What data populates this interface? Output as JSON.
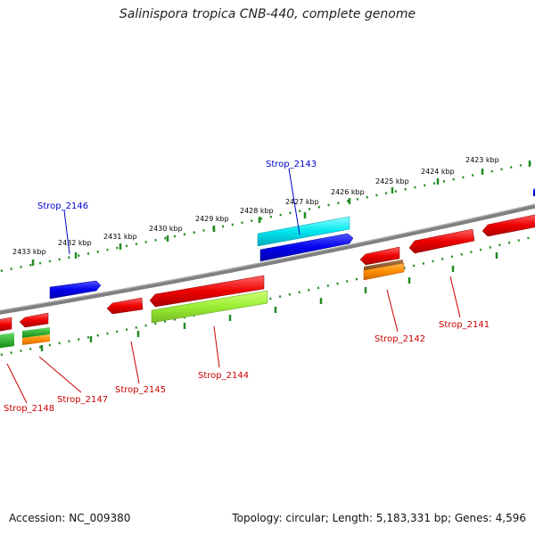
{
  "title": "Salinispora tropica CNB-440, complete genome",
  "footer": {
    "accession": "Accession: NC_009380",
    "summary": "Topology: circular; Length: 5,183,331 bp; Genes: 4,596"
  },
  "tick_labels": [
    "2433 kbp",
    "2432 kbp",
    "2431 kbp",
    "2430 kbp",
    "2429 kbp",
    "2428 kbp",
    "2427 kbp",
    "2426 kbp",
    "2425 kbp",
    "2424 kbp",
    "2423 kbp"
  ],
  "genes": [
    {
      "id": "Strop_2143",
      "strand": "forward",
      "color": "#0000cc"
    },
    {
      "id": "Strop_2146",
      "strand": "forward",
      "color": "#0000cc"
    },
    {
      "id": "Strop_2141",
      "strand": "reverse",
      "color": "#cc0000"
    },
    {
      "id": "Strop_2142",
      "strand": "reverse",
      "color": "#cc0000"
    },
    {
      "id": "Strop_2144",
      "strand": "reverse",
      "color": "#cc0000"
    },
    {
      "id": "Strop_2145",
      "strand": "reverse",
      "color": "#cc0000"
    },
    {
      "id": "Strop_2147",
      "strand": "reverse",
      "color": "#cc0000"
    },
    {
      "id": "Strop_2148",
      "strand": "reverse",
      "color": "#cc0000"
    }
  ],
  "colors": {
    "backbone": "#808080",
    "forward_gene": "#0000ee",
    "reverse_gene": "#ee0000",
    "feature_cyan": "#00e5ee",
    "feature_green": "#99ee33",
    "feature_orange": "#ff8c00",
    "feature_brown": "#8b5a2b",
    "feature_darkgreen": "#22aa22",
    "ticks": "#228b22"
  }
}
